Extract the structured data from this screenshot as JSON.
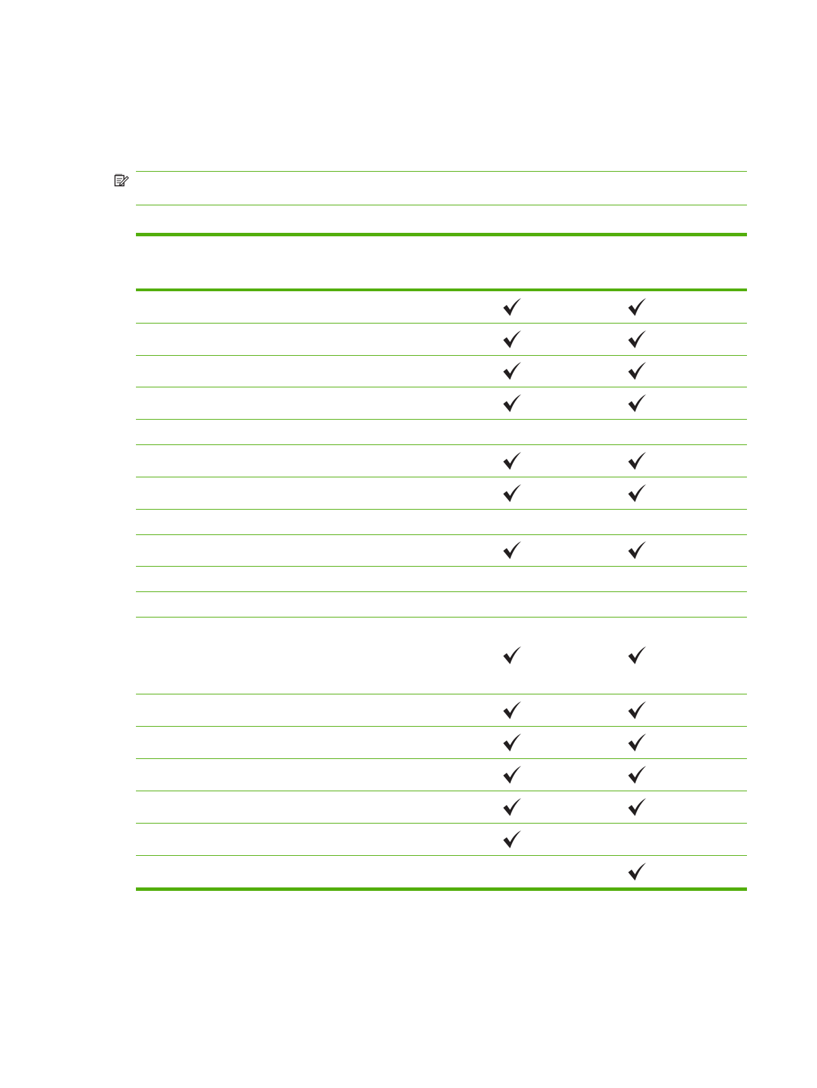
{
  "note": {
    "icon": "note-pencil-icon"
  },
  "colors": {
    "rule": "#52ae0c",
    "check": "#231f20"
  },
  "table": {
    "check_icon": "checkmark-icon",
    "rows": [
      {
        "col1": true,
        "col2": true
      },
      {
        "col1": true,
        "col2": true
      },
      {
        "col1": true,
        "col2": true
      },
      {
        "col1": true,
        "col2": true
      },
      {
        "col1": false,
        "col2": false
      },
      {
        "col1": true,
        "col2": true
      },
      {
        "col1": true,
        "col2": true
      },
      {
        "col1": false,
        "col2": false
      },
      {
        "col1": true,
        "col2": true
      },
      {
        "col1": false,
        "col2": false
      },
      {
        "col1": false,
        "col2": false
      },
      {
        "col1": true,
        "col2": true
      },
      {
        "col1": true,
        "col2": true
      },
      {
        "col1": true,
        "col2": true
      },
      {
        "col1": true,
        "col2": true
      },
      {
        "col1": true,
        "col2": true
      },
      {
        "col1": true,
        "col2": false
      },
      {
        "col1": false,
        "col2": true
      }
    ]
  }
}
